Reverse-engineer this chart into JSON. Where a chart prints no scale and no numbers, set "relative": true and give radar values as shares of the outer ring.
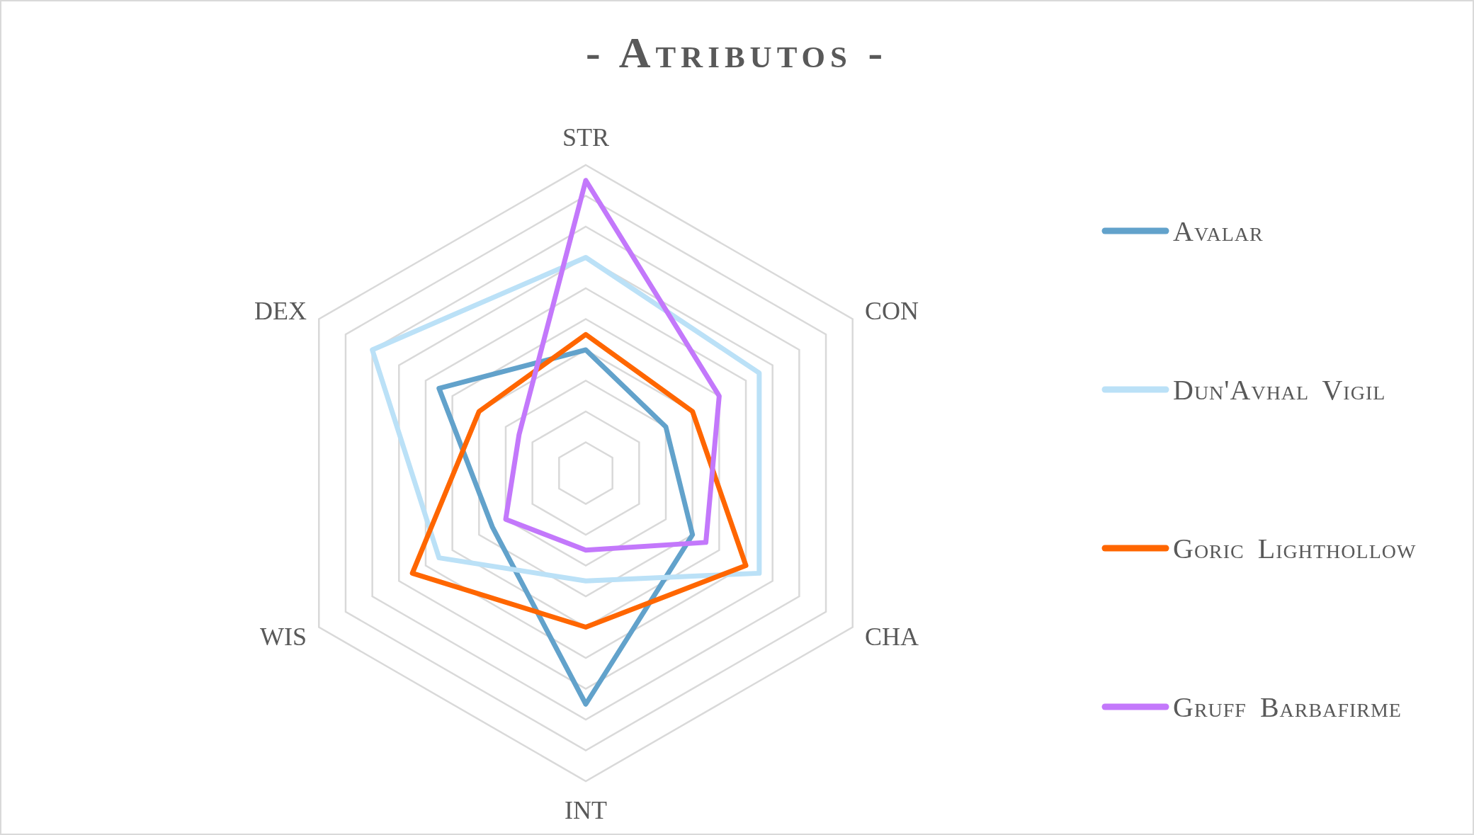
{
  "chart_data": {
    "type": "radar",
    "title": "- Atributos -",
    "categories": [
      "STR",
      "CON",
      "CHA",
      "INT",
      "WIS",
      "DEX"
    ],
    "relative": true,
    "series": [
      {
        "name": "Avalar",
        "color": "#62a2cb",
        "values": [
          0.4,
          0.3,
          0.4,
          0.75,
          0.35,
          0.55
        ]
      },
      {
        "name": "Dun'Avhal Vigil",
        "color": "#bbe1f7",
        "values": [
          0.7,
          0.65,
          0.65,
          0.35,
          0.55,
          0.8
        ]
      },
      {
        "name": "Goric Lighthollow",
        "color": "#ff6600",
        "values": [
          0.45,
          0.4,
          0.6,
          0.5,
          0.65,
          0.4
        ]
      },
      {
        "name": "Gruff Barbafirme",
        "color": "#c378fb",
        "values": [
          0.95,
          0.5,
          0.45,
          0.25,
          0.3,
          0.25
        ]
      }
    ],
    "grid": true,
    "legend": "right"
  }
}
